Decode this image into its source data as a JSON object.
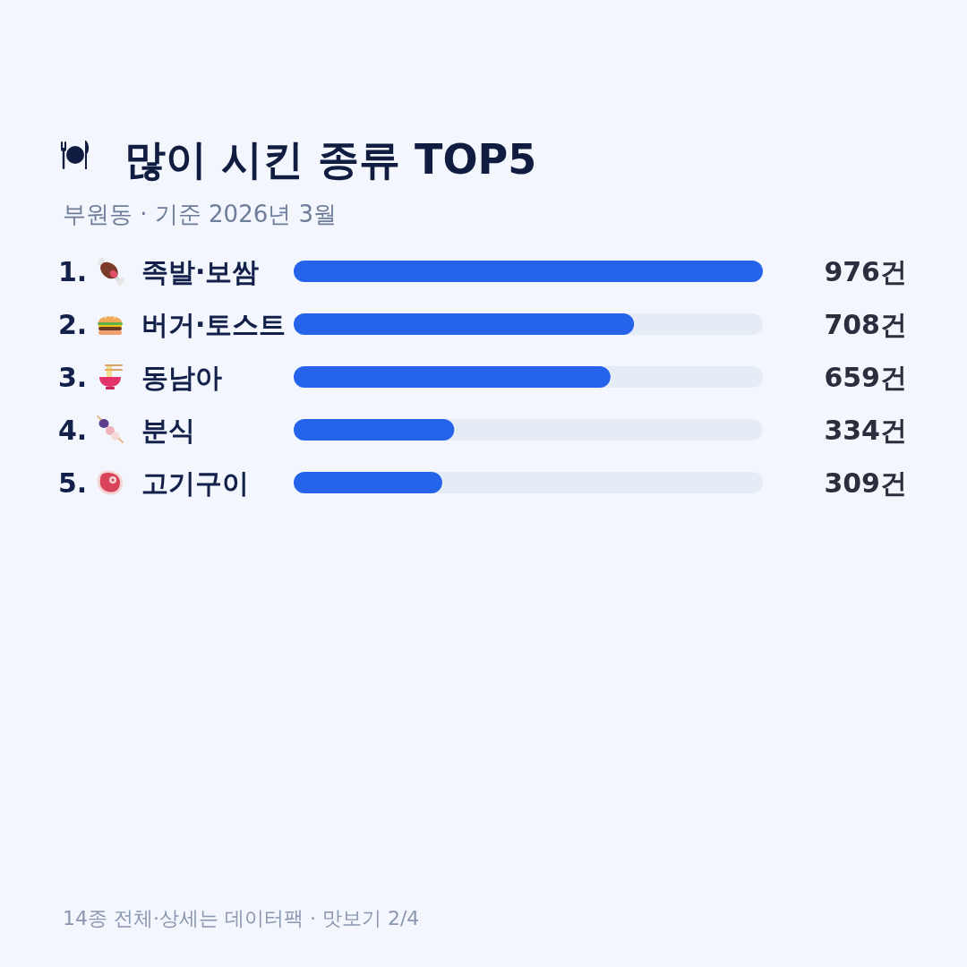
{
  "chart_data": {
    "type": "bar",
    "orientation": "horizontal",
    "title": "많이 시킨 종류 TOP5",
    "subtitle": "부원동 · 기준 2026년 3월",
    "categories": [
      "1. 족발·보쌈",
      "2. 버거·토스트",
      "3. 동남아",
      "4. 분식",
      "5. 고기구이"
    ],
    "values": [
      976,
      708,
      659,
      334,
      309
    ],
    "value_labels": [
      "976건",
      "708건",
      "659건",
      "334건",
      "309건"
    ],
    "color": "#2563eb",
    "xlim": [
      0,
      976
    ],
    "tick_labels": "y",
    "annotations": [
      "14종 전체·상세는 데이터팩 · 맛보기 2/4"
    ]
  }
}
